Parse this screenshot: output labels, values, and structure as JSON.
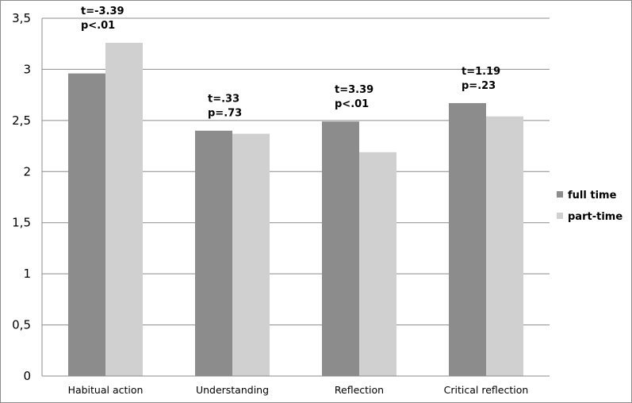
{
  "chart_data": {
    "type": "bar",
    "title": "",
    "xlabel": "",
    "ylabel": "",
    "categories": [
      "Habitual action",
      "Understanding",
      "Reflection",
      "Critical reflection"
    ],
    "series": [
      {
        "name": "full time",
        "values": [
          2.96,
          2.4,
          2.49,
          2.67
        ],
        "color": "#8c8c8c"
      },
      {
        "name": "part-time",
        "values": [
          3.26,
          2.37,
          2.19,
          2.54
        ],
        "color": "#d0d0d0"
      }
    ],
    "ylim": [
      0,
      3.5
    ],
    "yticks": [
      "0",
      "0,5",
      "1",
      "1,5",
      "2",
      "2,5",
      "3",
      "3,5"
    ],
    "grid": true,
    "legend": "right",
    "annotations": [
      {
        "t": "t=-3.39",
        "p": "p<.01"
      },
      {
        "t": "t=.33",
        "p": "p=.73"
      },
      {
        "t": "t=3.39",
        "p": "p<.01"
      },
      {
        "t": "t=1.19",
        "p": "p=.23"
      }
    ]
  }
}
